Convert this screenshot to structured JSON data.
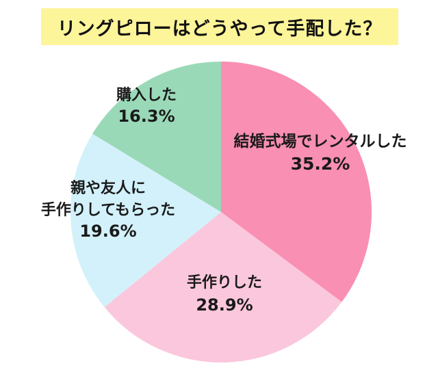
{
  "title": "リングピローはどうやって手配した？",
  "chart_data": {
    "type": "pie",
    "title": "リングピローはどうやって手配した？",
    "start_angle_deg": 0,
    "direction": "clockwise",
    "slices": [
      {
        "label_lines": [
          "結婚式場でレンタルした"
        ],
        "label": "結婚式場でレンタルした",
        "value": 35.2,
        "display": "35.2%",
        "color": "#f98fb2"
      },
      {
        "label_lines": [
          "手作りした"
        ],
        "label": "手作りした",
        "value": 28.9,
        "display": "28.9%",
        "color": "#fbc7dc"
      },
      {
        "label_lines": [
          "親や友人に",
          "手作りしてもらった"
        ],
        "label": "親や友人に手作りしてもらった",
        "value": 19.6,
        "display": "19.6%",
        "color": "#d3f1fb"
      },
      {
        "label_lines": [
          "購入した"
        ],
        "label": "購入した",
        "value": 16.3,
        "display": "16.3%",
        "color": "#9ad9b8"
      }
    ]
  }
}
